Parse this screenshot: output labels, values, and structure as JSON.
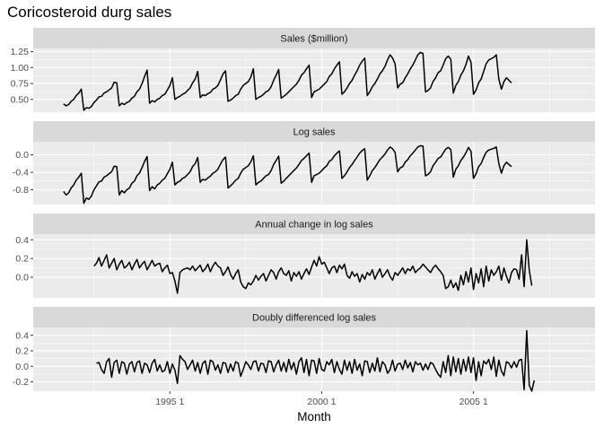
{
  "chart_data": {
    "type": "line",
    "title": "Coricosteroid durg sales",
    "xlabel": "Month",
    "x_ticks": [
      "1995  1",
      "2000  1",
      "2005  1"
    ],
    "x_tick_years": [
      1995,
      2000,
      2005
    ],
    "x_range": [
      1990.5,
      2009.0
    ],
    "grid": true,
    "legend": "none",
    "line_color": "#000000",
    "facets": [
      {
        "name": "Sales ($million)",
        "start": 1991.5,
        "ylim": [
          0.3,
          1.3
        ],
        "y_ticks": [
          1.25,
          1.0,
          0.75,
          0.5
        ],
        "y_tick_labels": [
          "1.25",
          "1.00",
          "0.75",
          "0.50"
        ],
        "values": [
          0.43,
          0.4,
          0.42,
          0.47,
          0.5,
          0.56,
          0.6,
          0.66,
          0.33,
          0.37,
          0.36,
          0.39,
          0.45,
          0.49,
          0.54,
          0.55,
          0.6,
          0.62,
          0.65,
          0.68,
          0.77,
          0.76,
          0.4,
          0.44,
          0.42,
          0.45,
          0.47,
          0.52,
          0.55,
          0.62,
          0.66,
          0.75,
          0.86,
          0.96,
          0.44,
          0.48,
          0.46,
          0.5,
          0.52,
          0.56,
          0.58,
          0.65,
          0.72,
          0.84,
          0.5,
          0.53,
          0.55,
          0.58,
          0.6,
          0.64,
          0.68,
          0.76,
          0.82,
          0.94,
          0.53,
          0.57,
          0.56,
          0.59,
          0.61,
          0.66,
          0.68,
          0.72,
          0.81,
          0.9,
          0.95,
          0.47,
          0.49,
          0.52,
          0.56,
          0.58,
          0.66,
          0.72,
          0.75,
          0.78,
          0.85,
          0.98,
          0.5,
          0.53,
          0.55,
          0.58,
          0.62,
          0.64,
          0.7,
          0.8,
          0.88,
          0.97,
          0.52,
          0.55,
          0.58,
          0.62,
          0.66,
          0.7,
          0.74,
          0.8,
          0.88,
          0.92,
          0.98,
          1.04,
          0.53,
          0.62,
          0.64,
          0.66,
          0.7,
          0.74,
          0.78,
          0.86,
          0.9,
          0.98,
          1.04,
          1.09,
          0.58,
          0.62,
          0.68,
          0.75,
          0.8,
          0.88,
          0.95,
          1.04,
          1.1,
          1.15,
          0.56,
          0.62,
          0.7,
          0.75,
          0.82,
          0.9,
          0.95,
          1.02,
          1.12,
          1.2,
          1.15,
          1.06,
          0.68,
          0.74,
          0.76,
          0.84,
          0.9,
          0.98,
          1.04,
          1.12,
          1.2,
          1.24,
          1.22,
          0.62,
          0.64,
          0.68,
          0.78,
          0.84,
          0.92,
          0.95,
          1.04,
          1.14,
          1.18,
          1.13,
          0.6,
          0.72,
          0.78,
          0.88,
          0.95,
          1.05,
          1.18,
          1.08,
          0.58,
          0.65,
          0.76,
          0.82,
          0.94,
          1.06,
          1.12,
          1.14,
          1.16,
          1.2,
          0.82,
          0.66,
          0.78,
          0.84,
          0.8,
          0.76
        ]
      },
      {
        "name": "Log sales",
        "start": 1991.5,
        "ylim": [
          -1.14,
          0.3
        ],
        "y_ticks": [
          0.0,
          -0.4,
          -0.8
        ],
        "y_tick_labels": [
          "0.0",
          "-0.4",
          "-0.8"
        ],
        "values": [
          -0.84,
          -0.92,
          -0.87,
          -0.76,
          -0.69,
          -0.58,
          -0.51,
          -0.42,
          -1.11,
          -0.99,
          -1.02,
          -0.94,
          -0.8,
          -0.71,
          -0.62,
          -0.6,
          -0.51,
          -0.48,
          -0.43,
          -0.39,
          -0.26,
          -0.27,
          -0.92,
          -0.82,
          -0.87,
          -0.8,
          -0.76,
          -0.65,
          -0.6,
          -0.48,
          -0.42,
          -0.29,
          -0.15,
          -0.04,
          -0.82,
          -0.73,
          -0.78,
          -0.69,
          -0.65,
          -0.58,
          -0.54,
          -0.43,
          -0.33,
          -0.17,
          -0.69,
          -0.63,
          -0.6,
          -0.54,
          -0.51,
          -0.45,
          -0.39,
          -0.27,
          -0.2,
          -0.06,
          -0.63,
          -0.56,
          -0.58,
          -0.53,
          -0.49,
          -0.42,
          -0.39,
          -0.33,
          -0.21,
          -0.11,
          -0.05,
          -0.76,
          -0.71,
          -0.65,
          -0.58,
          -0.54,
          -0.42,
          -0.33,
          -0.29,
          -0.25,
          -0.16,
          -0.02,
          -0.69,
          -0.63,
          -0.6,
          -0.54,
          -0.48,
          -0.45,
          -0.36,
          -0.22,
          -0.13,
          -0.03,
          -0.65,
          -0.6,
          -0.54,
          -0.48,
          -0.42,
          -0.36,
          -0.3,
          -0.22,
          -0.13,
          -0.08,
          -0.02,
          0.04,
          -0.63,
          -0.48,
          -0.45,
          -0.42,
          -0.36,
          -0.3,
          -0.25,
          -0.15,
          -0.11,
          -0.02,
          0.04,
          0.09,
          -0.54,
          -0.48,
          -0.39,
          -0.29,
          -0.22,
          -0.13,
          -0.05,
          0.04,
          0.1,
          0.14,
          -0.58,
          -0.48,
          -0.36,
          -0.29,
          -0.2,
          -0.11,
          -0.05,
          0.02,
          0.11,
          0.18,
          0.14,
          0.06,
          -0.39,
          -0.3,
          -0.27,
          -0.17,
          -0.11,
          -0.02,
          0.04,
          0.11,
          0.18,
          0.21,
          0.2,
          -0.48,
          -0.45,
          -0.39,
          -0.25,
          -0.17,
          -0.08,
          -0.05,
          0.04,
          0.13,
          0.17,
          0.12,
          -0.51,
          -0.33,
          -0.25,
          -0.13,
          -0.05,
          0.05,
          0.17,
          0.08,
          -0.54,
          -0.43,
          -0.27,
          -0.2,
          -0.06,
          0.06,
          0.11,
          0.13,
          0.15,
          0.18,
          -0.2,
          -0.42,
          -0.25,
          -0.17,
          -0.22,
          -0.27
        ]
      },
      {
        "name": "Annual change in log sales",
        "start": 1992.5,
        "ylim": [
          -0.22,
          0.46
        ],
        "y_ticks": [
          0.4,
          0.2,
          0.0
        ],
        "y_tick_labels": [
          "0.4",
          "0.2",
          "0.0"
        ],
        "values": [
          0.12,
          0.15,
          0.21,
          0.12,
          0.18,
          0.24,
          0.1,
          0.15,
          0.2,
          0.08,
          0.14,
          0.18,
          0.1,
          0.12,
          0.16,
          0.08,
          0.14,
          0.19,
          0.1,
          0.14,
          0.17,
          0.08,
          0.13,
          0.18,
          0.12,
          0.14,
          0.15,
          0.06,
          0.1,
          0.13,
          0.04,
          0.05,
          -0.04,
          -0.17,
          0.05,
          0.08,
          0.09,
          0.1,
          0.08,
          0.12,
          0.07,
          0.1,
          0.13,
          0.06,
          0.09,
          0.14,
          0.06,
          0.12,
          0.16,
          0.12,
          0.1,
          0.02,
          0.06,
          0.11,
          0.03,
          -0.02,
          0.04,
          0.08,
          -0.05,
          -0.1,
          -0.12,
          -0.06,
          -0.08,
          -0.04,
          0.02,
          -0.03,
          0.01,
          0.04,
          -0.04,
          0.02,
          0.08,
          0.05,
          -0.02,
          0.06,
          0.1,
          0.04,
          0.02,
          0.07,
          -0.04,
          0.05,
          0.01,
          0.06,
          -0.02,
          0.04,
          0.09,
          0.03,
          0.11,
          0.18,
          0.12,
          0.22,
          0.14,
          0.16,
          0.1,
          0.04,
          0.1,
          0.12,
          0.05,
          0.13,
          0.09,
          0.14,
          0.02,
          -0.01,
          0.06,
          0.01,
          0.04,
          -0.05,
          0.03,
          -0.02,
          0.05,
          0.02,
          0.08,
          -0.02,
          0.04,
          0.09,
          0.0,
          0.04,
          0.08,
          0.01,
          -0.03,
          0.05,
          0.02,
          0.06,
          0.1,
          0.04,
          0.09,
          0.07,
          0.12,
          0.05,
          0.08,
          0.1,
          0.14,
          0.11,
          0.08,
          0.05,
          0.1,
          0.13,
          0.09,
          0.06,
          0.02,
          -0.12,
          -0.1,
          -0.03,
          -0.11,
          -0.06,
          -0.14,
          0.02,
          -0.08,
          0.06,
          -0.05,
          0.1,
          -0.13,
          0.04,
          -0.06,
          0.09,
          -0.1,
          0.12,
          -0.04,
          0.08,
          0.02,
          0.06,
          0.12,
          -0.03,
          0.1,
          0.01,
          -0.06,
          0.05,
          0.09,
          0.08,
          -0.02,
          0.24,
          -0.1,
          0.4,
          0.08,
          -0.09
        ]
      },
      {
        "name": "Doubly differenced log sales",
        "start": 1992.5833,
        "ylim": [
          -0.32,
          0.5
        ],
        "y_ticks": [
          0.4,
          0.2,
          0.0,
          -0.2
        ],
        "y_tick_labels": [
          "0.4",
          "0.2",
          "0.0",
          "-0.2"
        ],
        "values": [
          0.04,
          0.05,
          -0.04,
          -0.09,
          0.06,
          0.1,
          -0.14,
          0.05,
          0.08,
          -0.09,
          0.06,
          0.04,
          -0.1,
          0.03,
          0.06,
          -0.07,
          0.05,
          0.07,
          -0.09,
          0.04,
          0.02,
          -0.08,
          0.04,
          0.09,
          -0.06,
          0.02,
          -0.07,
          -0.05,
          0.06,
          -0.09,
          0.03,
          -0.05,
          -0.22,
          0.14,
          0.09,
          0.06,
          -0.04,
          0.02,
          0.08,
          -0.06,
          0.05,
          -0.09,
          0.04,
          0.07,
          -0.1,
          0.08,
          0.06,
          -0.05,
          0.02,
          -0.09,
          0.05,
          0.04,
          -0.08,
          0.03,
          -0.06,
          0.06,
          0.04,
          -0.13,
          -0.04,
          0.06,
          0.02,
          -0.04,
          0.06,
          0.07,
          -0.06,
          0.04,
          0.03,
          -0.08,
          0.07,
          0.06,
          -0.07,
          0.02,
          0.08,
          -0.06,
          0.05,
          -0.07,
          0.09,
          -0.04,
          0.05,
          -0.1,
          0.06,
          0.11,
          -0.08,
          0.09,
          -0.12,
          0.08,
          0.07,
          -0.09,
          0.1,
          -0.04,
          -0.06,
          0.06,
          0.02,
          0.09,
          -0.08,
          0.06,
          -0.04,
          -0.1,
          0.08,
          -0.05,
          0.06,
          -0.09,
          0.09,
          -0.05,
          0.03,
          -0.12,
          0.07,
          0.06,
          -0.08,
          0.04,
          -0.06,
          0.11,
          -0.07,
          0.06,
          0.02,
          -0.09,
          -0.04,
          0.08,
          -0.06,
          0.03,
          0.04,
          -0.04,
          0.08,
          -0.02,
          0.05,
          -0.07,
          0.06,
          0.02,
          0.04,
          -0.05,
          0.03,
          -0.04,
          0.05,
          0.03,
          -0.04,
          -0.1,
          -0.14,
          0.06,
          -0.08,
          0.14,
          -0.12,
          0.12,
          -0.07,
          0.1,
          -0.1,
          0.09,
          -0.06,
          0.12,
          -0.08,
          0.11,
          -0.18,
          0.06,
          -0.12,
          0.07,
          0.03,
          0.09,
          -0.04,
          0.12,
          -0.13,
          0.08,
          -0.06,
          -0.12,
          0.06,
          0.04,
          -0.02,
          0.06,
          -0.01,
          0.08,
          0.09,
          -0.3,
          0.46,
          -0.24,
          -0.32,
          -0.18
        ]
      }
    ]
  }
}
